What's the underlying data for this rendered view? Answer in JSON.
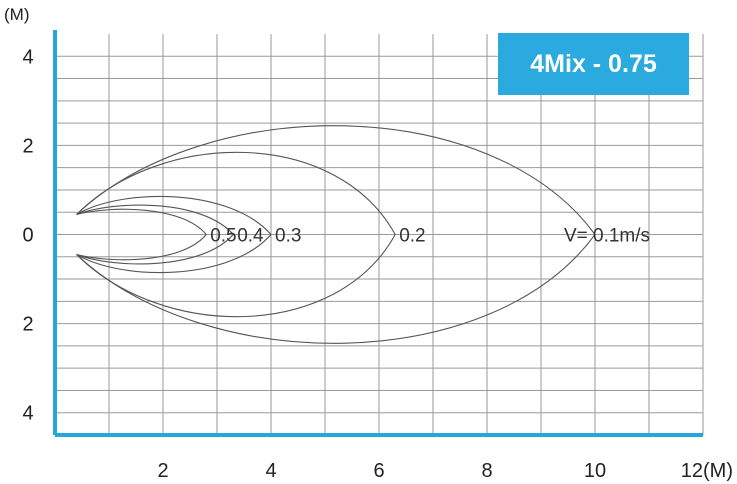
{
  "badge": {
    "text": "4Mix - 0.75",
    "bg_color": "#2aaadf",
    "text_color": "#ffffff"
  },
  "axis_color": "#22a8dc",
  "chart_data": {
    "type": "line",
    "title": "4Mix - 0.75",
    "x_unit": "12(M)",
    "y_unit": "(M)",
    "xlim": [
      0,
      12
    ],
    "ylim": [
      -4.5,
      4.5
    ],
    "x_ticks": [
      {
        "value": 2,
        "label": "2"
      },
      {
        "value": 4,
        "label": "4"
      },
      {
        "value": 6,
        "label": "6"
      },
      {
        "value": 8,
        "label": "8"
      },
      {
        "value": 10,
        "label": "10"
      }
    ],
    "y_ticks": [
      {
        "value": 4,
        "label": "4"
      },
      {
        "value": 2,
        "label": "2"
      },
      {
        "value": 0,
        "label": "0"
      },
      {
        "value": -2,
        "label": "2"
      },
      {
        "value": -4,
        "label": "4"
      }
    ],
    "grid": true,
    "series": [
      {
        "label": "0.5",
        "tip_x": 2.8,
        "max_y": 0.6,
        "peak_x": 1.7
      },
      {
        "label": "0.4",
        "tip_x": 3.3,
        "max_y": 0.7,
        "peak_x": 1.9
      },
      {
        "label": "0.3",
        "tip_x": 4.0,
        "max_y": 0.9,
        "peak_x": 2.1
      },
      {
        "label": "0.2",
        "tip_x": 6.3,
        "max_y": 1.9,
        "peak_x": 3.6
      },
      {
        "label": "V= 0.1m/s",
        "tip_x": 10.0,
        "max_y": 2.5,
        "peak_x": 5.2
      }
    ],
    "origin_x": 0.4,
    "origin_y": 0.45
  }
}
